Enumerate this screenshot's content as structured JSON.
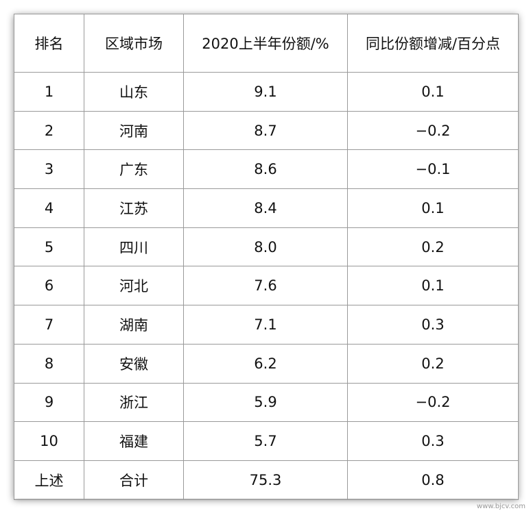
{
  "table": {
    "header": [
      "排名",
      "区域市场",
      "2020上半年份额/%",
      "同比份额增减/百分点"
    ],
    "rows": [
      [
        "1",
        "山东",
        "9.1",
        "0.1"
      ],
      [
        "2",
        "河南",
        "8.7",
        "−0.2"
      ],
      [
        "3",
        "广东",
        "8.6",
        "−0.1"
      ],
      [
        "4",
        "江苏",
        "8.4",
        "0.1"
      ],
      [
        "5",
        "四川",
        "8.0",
        "0.2"
      ],
      [
        "6",
        "河北",
        "7.6",
        "0.1"
      ],
      [
        "7",
        "湖南",
        "7.1",
        "0.3"
      ],
      [
        "8",
        "安徽",
        "6.2",
        "0.2"
      ],
      [
        "9",
        "浙江",
        "5.9",
        "−0.2"
      ],
      [
        "10",
        "福建",
        "5.7",
        "0.3"
      ],
      [
        "上述",
        "合计",
        "75.3",
        "0.8"
      ]
    ]
  },
  "watermark": "www.bjcv.com"
}
